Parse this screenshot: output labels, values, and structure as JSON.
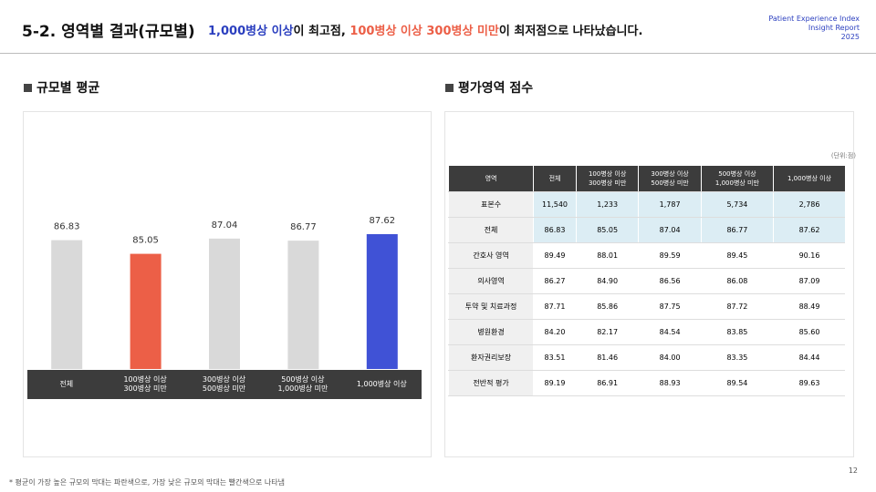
{
  "header": {
    "title": "5-2. 영역별 결과(규모별)",
    "summary": [
      "1,000병상 이상",
      "이 최고점, ",
      "100병상 이상 300병상 미만",
      "이 최저점으로 나타났습니다."
    ],
    "brand": [
      "Patient Experience Index",
      "Insight Report",
      "2025"
    ]
  },
  "sections": [
    "규모별 평균",
    "평가영역 점수"
  ],
  "chart_data": {
    "type": "bar",
    "categories": [
      "전체",
      "100병상 이상\n300병상 미만",
      "300병상 이상\n500병상 미만",
      "500병상 이상\n1,000병상 미만",
      "1,000병상 이상"
    ],
    "values": [
      86.83,
      85.05,
      87.04,
      86.77,
      87.62
    ],
    "colors": [
      "#d9d9d9",
      "#ec5f47",
      "#d9d9d9",
      "#d9d9d9",
      "#4052d6"
    ],
    "ylim": [
      70,
      90
    ]
  },
  "table": {
    "unit": "(단위:점)",
    "columns": [
      "영역",
      "전체",
      "100병상 이상\n300병상 미만",
      "300병상 이상\n500병상 미만",
      "500병상 이상\n1,000병상 미만",
      "1,000병상 이상"
    ],
    "rows": [
      [
        "표본수",
        "11,540",
        "1,233",
        "1,787",
        "5,734",
        "2,786"
      ],
      [
        "전체",
        "86.83",
        "85.05",
        "87.04",
        "86.77",
        "87.62"
      ],
      [
        "간호사 영역",
        "89.49",
        "88.01",
        "89.59",
        "89.45",
        "90.16"
      ],
      [
        "의사영역",
        "86.27",
        "84.90",
        "86.56",
        "86.08",
        "87.09"
      ],
      [
        "투약 및 치료과정",
        "87.71",
        "85.86",
        "87.75",
        "87.72",
        "88.49"
      ],
      [
        "병원환경",
        "84.20",
        "82.17",
        "84.54",
        "83.85",
        "85.60"
      ],
      [
        "환자권리보장",
        "83.51",
        "81.46",
        "84.00",
        "83.35",
        "84.44"
      ],
      [
        "전반적 평가",
        "89.19",
        "86.91",
        "88.93",
        "89.54",
        "89.63"
      ]
    ]
  },
  "footnote": "* 평균이 가장 높은 규모의 막대는 파란색으로, 가장 낮은 규모의 막대는 빨간색으로 나타냄",
  "page": "12"
}
